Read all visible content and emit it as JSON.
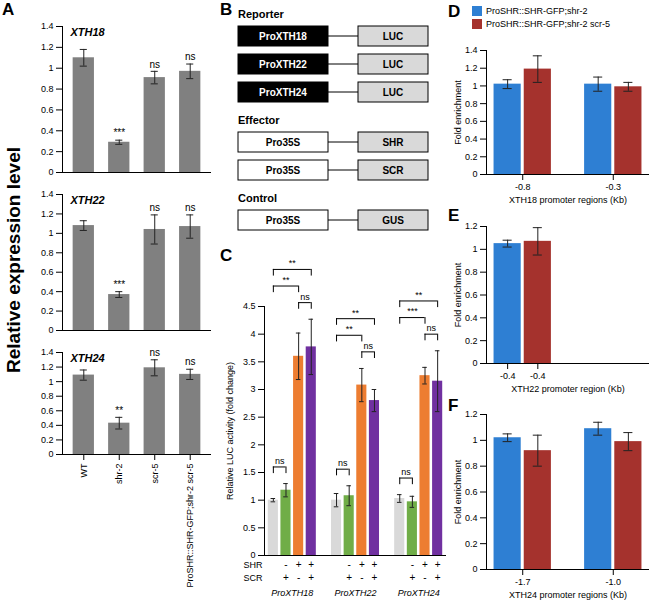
{
  "chart_data": [
    {
      "panel": "A",
      "type": "bar",
      "title": "XTH18",
      "ylabel": "Relative expression level",
      "categories": [
        "WT",
        "shr-2",
        "scr-5",
        "ProSHR::SHR-GFP;shr-2 scr-5"
      ],
      "values": [
        1.1,
        0.29,
        0.91,
        0.97
      ],
      "errors": [
        0.08,
        0.02,
        0.06,
        0.07
      ],
      "significance": [
        null,
        "***",
        "ns",
        "ns"
      ],
      "color": "#808080",
      "ylim": [
        0,
        1.4
      ],
      "yticks": [
        0,
        0.2,
        0.4,
        0.6,
        0.8,
        1,
        1.2,
        1.4
      ],
      "tick_labels": "y"
    },
    {
      "type": "bar",
      "title": "XTH22",
      "categories": [
        "WT",
        "shr-2",
        "scr-5",
        "ProSHR::SHR-GFP;shr-2 scr-5"
      ],
      "values": [
        1.08,
        0.37,
        1.04,
        1.07
      ],
      "errors": [
        0.05,
        0.03,
        0.15,
        0.12
      ],
      "significance": [
        null,
        "***",
        "ns",
        "ns"
      ],
      "color": "#808080",
      "ylim": [
        0,
        1.4
      ],
      "yticks": [
        0,
        0.2,
        0.4,
        0.6,
        0.8,
        1,
        1.2,
        1.4
      ],
      "tick_labels": "y"
    },
    {
      "type": "bar",
      "title": "XTH24",
      "categories": [
        "WT",
        "shr-2",
        "scr-5",
        "ProSHR::SHR-GFP;shr-2 scr-5"
      ],
      "values": [
        1.09,
        0.43,
        1.19,
        1.1
      ],
      "errors": [
        0.07,
        0.08,
        0.11,
        0.07
      ],
      "significance": [
        null,
        "**",
        "ns",
        "ns"
      ],
      "color": "#808080",
      "ylim": [
        0,
        1.4
      ],
      "yticks": [
        0,
        0.2,
        0.4,
        0.6,
        0.8,
        1,
        1.2,
        1.4
      ]
    },
    {
      "panel": "C",
      "type": "bar",
      "ylabel": "Relative LUC activity (fold change)",
      "categories": [
        "ProXTH18",
        "ProXTH22",
        "ProXTH24"
      ],
      "series": [
        {
          "color": "#d9d9d9",
          "values": [
            1.0,
            1.0,
            1.03
          ],
          "errors": [
            0.03,
            0.12,
            0.07
          ]
        },
        {
          "color": "#70ad47",
          "values": [
            1.18,
            1.08,
            0.97
          ],
          "errors": [
            0.12,
            0.18,
            0.1
          ]
        },
        {
          "color": "#ed7d31",
          "values": [
            3.6,
            3.08,
            3.25
          ],
          "errors": [
            0.42,
            0.3,
            0.15
          ]
        },
        {
          "color": "#7030a0",
          "values": [
            3.77,
            2.8,
            3.15
          ],
          "errors": [
            0.5,
            0.2,
            0.55
          ]
        }
      ],
      "effectors": [
        {
          "name": "SHR",
          "signs": [
            null,
            "-",
            "+",
            "+"
          ]
        },
        {
          "name": "SCR",
          "signs": [
            null,
            "+",
            "-",
            "+"
          ]
        }
      ],
      "comparisons": [
        [
          {
            "bars": [
              0,
              1
            ],
            "label": "ns"
          },
          {
            "bars": [
              0,
              2
            ],
            "label": "**"
          },
          {
            "bars": [
              2,
              3
            ],
            "label": "ns"
          },
          {
            "bars": [
              0,
              3
            ],
            "label": "**"
          }
        ],
        [
          {
            "bars": [
              0,
              1
            ],
            "label": "ns"
          },
          {
            "bars": [
              0,
              2
            ],
            "label": "**"
          },
          {
            "bars": [
              2,
              3
            ],
            "label": "ns"
          },
          {
            "bars": [
              0,
              3
            ],
            "label": "**"
          }
        ],
        [
          {
            "bars": [
              0,
              1
            ],
            "label": "ns"
          },
          {
            "bars": [
              0,
              2
            ],
            "label": "***"
          },
          {
            "bars": [
              2,
              3
            ],
            "label": "ns"
          },
          {
            "bars": [
              0,
              3
            ],
            "label": "**"
          }
        ]
      ],
      "ylim": [
        0,
        4.5
      ],
      "yticks": [
        0,
        0.5,
        1,
        1.5,
        2,
        2.5,
        3,
        3.5,
        4,
        4.5
      ]
    },
    {
      "panel": "D",
      "type": "bar",
      "xlabel": "XTH18 promoter regions (Kb)",
      "ylabel": "Fold enrichment",
      "categories": [
        "-0.8",
        "-0.3"
      ],
      "series": [
        {
          "name": "ProSHR::SHR-GFP;shr-2",
          "color": "#2e7fd3",
          "values": [
            1.02,
            1.02
          ],
          "errors": [
            0.05,
            0.08
          ]
        },
        {
          "name": "ProSHR::SHR-GFP;shr-2 scr-5",
          "color": "#a5322d",
          "values": [
            1.19,
            0.99
          ],
          "errors": [
            0.15,
            0.05
          ]
        }
      ],
      "legend": "top",
      "ylim": [
        0,
        1.4
      ],
      "yticks": [
        0,
        0.2,
        0.4,
        0.6,
        0.8,
        1,
        1.2,
        1.4
      ]
    },
    {
      "panel": "E",
      "type": "bar",
      "xlabel": "XTH22 promoter region (Kb)",
      "ylabel": "Fold enrichment",
      "categories": [
        "-0.4"
      ],
      "series": [
        {
          "color": "#2e7fd3",
          "values": [
            1.05
          ],
          "errors": [
            0.03
          ]
        },
        {
          "color": "#a5322d",
          "values": [
            1.07
          ],
          "errors": [
            0.12
          ]
        }
      ],
      "ylim": [
        0,
        1.2
      ],
      "yticks": [
        0,
        0.2,
        0.4,
        0.6,
        0.8,
        1,
        1.2
      ]
    },
    {
      "panel": "F",
      "type": "bar",
      "xlabel": "XTH24 promoter regions (Kb)",
      "ylabel": "Fold enrichment",
      "categories": [
        "-1.7",
        "-1.0"
      ],
      "series": [
        {
          "color": "#2e7fd3",
          "values": [
            1.02,
            1.09
          ],
          "errors": [
            0.03,
            0.05
          ]
        },
        {
          "color": "#a5322d",
          "values": [
            0.92,
            0.99
          ],
          "errors": [
            0.12,
            0.07
          ]
        }
      ],
      "ylim": [
        0,
        1.2
      ],
      "yticks": [
        0,
        0.2,
        0.4,
        0.6,
        0.8,
        1,
        1.2
      ]
    }
  ],
  "diagram": {
    "panel": "B",
    "groups": [
      {
        "title": "Reporter",
        "constructs": [
          {
            "promoter": "ProXTH18",
            "gene": "LUC"
          },
          {
            "promoter": "ProXTH22",
            "gene": "LUC"
          },
          {
            "promoter": "ProXTH24",
            "gene": "LUC"
          }
        ]
      },
      {
        "title": "Effector",
        "constructs": [
          {
            "promoter": "Pro35S",
            "gene": "SHR"
          },
          {
            "promoter": "Pro35S",
            "gene": "SCR"
          }
        ]
      },
      {
        "title": "Control",
        "constructs": [
          {
            "promoter": "Pro35S",
            "gene": "GUS"
          }
        ]
      }
    ]
  }
}
